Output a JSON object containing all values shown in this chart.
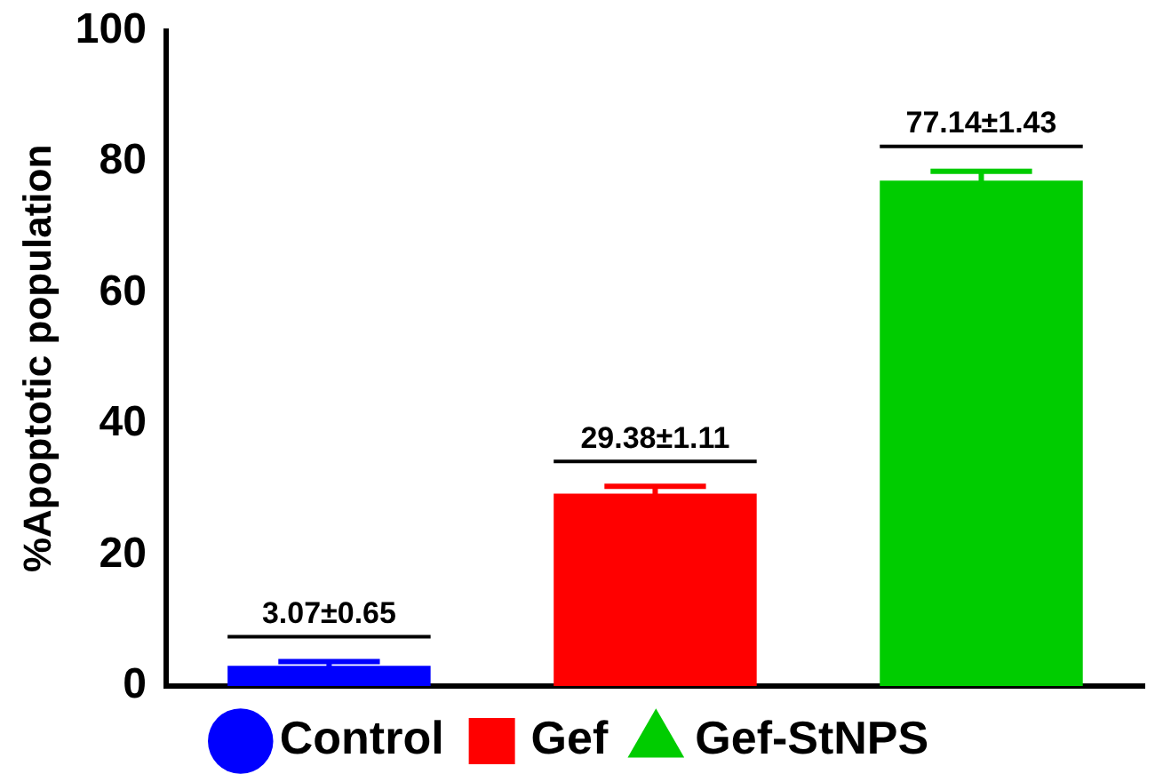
{
  "chart_data": {
    "type": "bar",
    "ylabel": "%Apoptotic population",
    "categories": [
      null,
      null,
      null
    ],
    "series": [
      {
        "name": "Control",
        "color": "#0000ff",
        "marker": "circle",
        "values": [
          3.07,
          null,
          null
        ],
        "errors": [
          0.65,
          null,
          null
        ],
        "value_labels": [
          "3.07±0.65",
          null,
          null
        ]
      },
      {
        "name": "Gef",
        "color": "#ff0000",
        "marker": "square",
        "values": [
          null,
          29.38,
          null
        ],
        "errors": [
          null,
          1.11,
          null
        ],
        "value_labels": [
          null,
          "29.38±1.11",
          null
        ]
      },
      {
        "name": "Gef-StNPS",
        "color": "#00cc00",
        "marker": "triangle",
        "values": [
          null,
          null,
          77.14
        ],
        "errors": [
          null,
          null,
          1.43
        ],
        "value_labels": [
          null,
          null,
          "77.14±1.43"
        ]
      }
    ],
    "ylim": [
      0,
      100
    ],
    "yticks": [
      0,
      20,
      40,
      60,
      80,
      100
    ],
    "grid": false,
    "legend": "bottom"
  }
}
